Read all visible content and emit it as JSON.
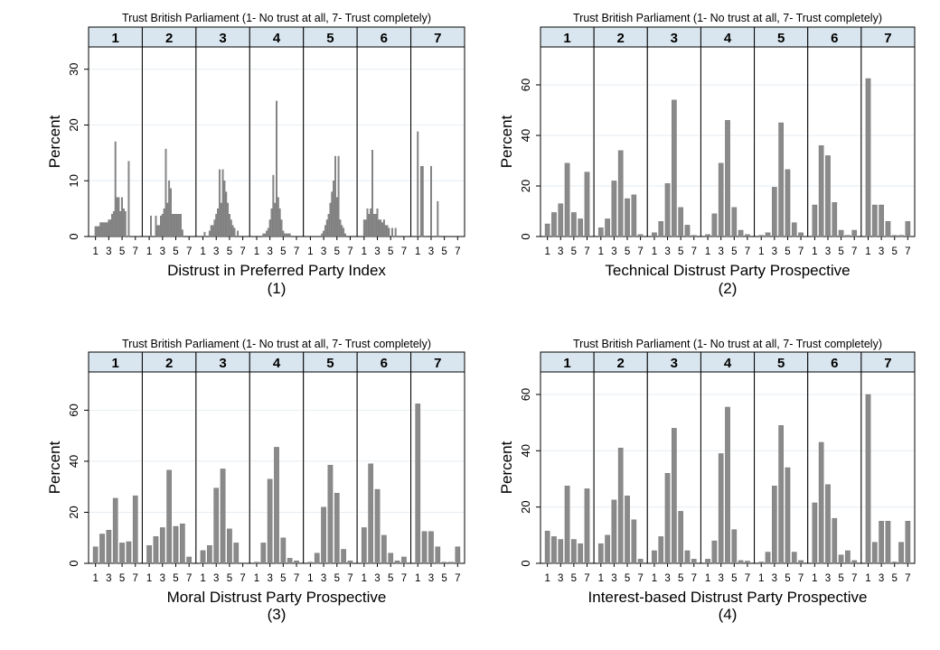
{
  "chart_data": [
    {
      "type": "bar",
      "title": "Trust British Parliament (1- No trust at all, 7- Trust completely)",
      "facets": [
        "1",
        "2",
        "3",
        "4",
        "5",
        "6",
        "7"
      ],
      "ylabel": "Percent",
      "ylim": [
        0,
        34
      ],
      "yticks": [
        0,
        10,
        20,
        30
      ],
      "xticks": [
        "1",
        "3",
        "5",
        "7"
      ],
      "xrange": [
        0.5,
        7.5
      ],
      "xlabel": "Distrust in Preferred Party Index",
      "number": "(1)",
      "grid": true,
      "panels": [
        {
          "facet": "1",
          "x": [
            1,
            1.25,
            1.5,
            1.75,
            2,
            2.25,
            2.5,
            2.75,
            3,
            3.25,
            3.5,
            3.75,
            4,
            4.25,
            4.5,
            4.75,
            5,
            5.25,
            5.5,
            5.75,
            6,
            6.25,
            6.5,
            6.75,
            7
          ],
          "values": [
            1.8,
            1.8,
            1.8,
            2.5,
            2.5,
            2.5,
            2.5,
            2.5,
            3,
            3,
            4,
            4.5,
            17,
            7,
            7,
            4.5,
            7,
            5,
            4.5,
            0,
            13.5,
            0,
            0,
            0,
            0
          ]
        },
        {
          "facet": "2",
          "x": [
            1,
            1.25,
            1.5,
            1.75,
            2,
            2.25,
            2.5,
            2.75,
            3,
            3.25,
            3.5,
            3.75,
            4,
            4.25,
            4.5,
            4.75,
            5,
            5.25,
            5.5,
            5.75,
            6,
            6.25,
            6.5,
            6.75,
            7
          ],
          "values": [
            0,
            3.7,
            0,
            0,
            3.7,
            2,
            2,
            3.7,
            4,
            5,
            15.7,
            6,
            10,
            8.6,
            4,
            4,
            4,
            4,
            4,
            4,
            1.2,
            0,
            0,
            0,
            0
          ]
        },
        {
          "facet": "3",
          "x": [
            1,
            1.25,
            1.5,
            1.75,
            2,
            2.25,
            2.5,
            2.75,
            3,
            3.25,
            3.5,
            3.75,
            4,
            4.25,
            4.5,
            4.75,
            5,
            5.25,
            5.5,
            5.75,
            6,
            6.25,
            6.5,
            6.75,
            7
          ],
          "values": [
            0,
            0.8,
            0,
            0,
            1,
            2,
            2,
            3,
            4,
            5,
            12,
            6,
            12,
            10,
            8,
            6,
            4,
            3,
            2,
            1.5,
            0,
            1,
            0,
            0,
            0
          ]
        },
        {
          "facet": "4",
          "x": [
            1,
            1.25,
            1.5,
            1.75,
            2,
            2.25,
            2.5,
            2.75,
            3,
            3.25,
            3.5,
            3.75,
            4,
            4.25,
            4.5,
            4.75,
            5,
            5.25,
            5.5,
            5.75,
            6,
            6.25,
            6.5,
            6.75,
            7
          ],
          "values": [
            0,
            0,
            0,
            0,
            0.5,
            0.5,
            1,
            1.5,
            3,
            5,
            11,
            6,
            24.3,
            7,
            5,
            3,
            1,
            0.5,
            0.5,
            0.5,
            0.5,
            0,
            0,
            0,
            0
          ]
        },
        {
          "facet": "5",
          "x": [
            1,
            1.25,
            1.5,
            1.75,
            2,
            2.25,
            2.5,
            2.75,
            3,
            3.25,
            3.5,
            3.75,
            4,
            4.25,
            4.5,
            4.75,
            5,
            5.25,
            5.5,
            5.75,
            6,
            6.25,
            6.5,
            6.75,
            7
          ],
          "values": [
            0,
            0,
            0,
            0,
            0,
            0,
            0,
            0.5,
            1,
            2,
            3,
            4,
            6,
            8,
            10,
            14.4,
            7,
            14.4,
            3,
            2,
            1.5,
            0.5,
            0,
            0,
            0
          ]
        },
        {
          "facet": "6",
          "x": [
            1,
            1.25,
            1.5,
            1.75,
            2,
            2.25,
            2.5,
            2.75,
            3,
            3.25,
            3.5,
            3.75,
            4,
            4.25,
            4.5,
            4.75,
            5,
            5.25,
            5.5,
            5.75,
            6,
            6.25,
            6.5,
            6.75,
            7
          ],
          "values": [
            3,
            3,
            5,
            4,
            5,
            15.5,
            4,
            4,
            5,
            3,
            3,
            2.5,
            3,
            2,
            2,
            1.5,
            0,
            1.5,
            0,
            1.5,
            0,
            0,
            0,
            0,
            0
          ]
        },
        {
          "facet": "7",
          "x": [
            1,
            1.25,
            1.5,
            1.75,
            2,
            2.25,
            2.5,
            2.75,
            3,
            3.25,
            3.5,
            3.75,
            4,
            4.25,
            4.5,
            4.75,
            5,
            5.25,
            5.5,
            5.75,
            6,
            6.25,
            6.5,
            6.75,
            7
          ],
          "values": [
            18.8,
            0,
            12.6,
            12.6,
            0,
            0,
            0,
            0,
            12.6,
            0,
            0,
            0,
            6.3,
            0,
            0,
            0,
            0,
            0,
            0,
            0,
            0,
            0,
            0,
            0,
            0
          ]
        }
      ]
    },
    {
      "type": "bar",
      "title": "Trust British Parliament (1- No trust at all, 7- Trust completely)",
      "facets": [
        "1",
        "2",
        "3",
        "4",
        "5",
        "6",
        "7"
      ],
      "ylabel": "Percent",
      "ylim": [
        0,
        75
      ],
      "yticks": [
        0,
        20,
        40,
        60
      ],
      "xticks": [
        "1",
        "3",
        "5",
        "7"
      ],
      "xrange": [
        0.5,
        7.5
      ],
      "xlabel": "Technical Distrust Party Prospective",
      "number": "(2)",
      "grid": true,
      "panels": [
        {
          "facet": "1",
          "x": [
            1,
            2,
            3,
            4,
            5,
            6,
            7
          ],
          "values": [
            5,
            9.5,
            13,
            29,
            9.5,
            7,
            25.5
          ]
        },
        {
          "facet": "2",
          "x": [
            1,
            2,
            3,
            4,
            5,
            6,
            7
          ],
          "values": [
            3.5,
            7,
            22,
            34,
            15,
            16.5,
            0.8
          ]
        },
        {
          "facet": "3",
          "x": [
            1,
            2,
            3,
            4,
            5,
            6,
            7
          ],
          "values": [
            1.5,
            6,
            21,
            54,
            11.5,
            4.5,
            0.5
          ]
        },
        {
          "facet": "4",
          "x": [
            1,
            2,
            3,
            4,
            5,
            6,
            7
          ],
          "values": [
            0.8,
            9,
            29,
            46,
            11.5,
            2.5,
            0.8
          ]
        },
        {
          "facet": "5",
          "x": [
            1,
            2,
            3,
            4,
            5,
            6,
            7
          ],
          "values": [
            0.5,
            1.5,
            19.5,
            45,
            26.5,
            5.5,
            1.5
          ]
        },
        {
          "facet": "6",
          "x": [
            1,
            2,
            3,
            4,
            5,
            6,
            7
          ],
          "values": [
            12.5,
            36,
            32,
            13.5,
            2.5,
            0.5,
            2.5
          ]
        },
        {
          "facet": "7",
          "x": [
            1,
            2,
            3,
            4,
            5,
            6,
            7
          ],
          "values": [
            62.5,
            12.5,
            12.5,
            6,
            0.5,
            0.5,
            6
          ]
        }
      ]
    },
    {
      "type": "bar",
      "title": "Trust British Parliament (1- No trust at all, 7- Trust completely)",
      "facets": [
        "1",
        "2",
        "3",
        "4",
        "5",
        "6",
        "7"
      ],
      "ylabel": "Percent",
      "ylim": [
        0,
        75
      ],
      "yticks": [
        0,
        20,
        40,
        60
      ],
      "xticks": [
        "1",
        "3",
        "5",
        "7"
      ],
      "xrange": [
        0.5,
        7.5
      ],
      "xlabel": "Moral Distrust Party Prospective",
      "number": "(3)",
      "grid": true,
      "panels": [
        {
          "facet": "1",
          "x": [
            1,
            2,
            3,
            4,
            5,
            6,
            7
          ],
          "values": [
            6.5,
            11.5,
            13,
            25.5,
            8,
            8.5,
            26.5
          ]
        },
        {
          "facet": "2",
          "x": [
            1,
            2,
            3,
            4,
            5,
            6,
            7
          ],
          "values": [
            7,
            10.5,
            14,
            36.5,
            14.5,
            15.5,
            2.5
          ]
        },
        {
          "facet": "3",
          "x": [
            1,
            2,
            3,
            4,
            5,
            6,
            7
          ],
          "values": [
            5,
            7,
            29.5,
            37,
            13.5,
            8,
            0.3
          ]
        },
        {
          "facet": "4",
          "x": [
            1,
            2,
            3,
            4,
            5,
            6,
            7
          ],
          "values": [
            0.5,
            8,
            33,
            45.5,
            10,
            2,
            1
          ]
        },
        {
          "facet": "5",
          "x": [
            1,
            2,
            3,
            4,
            5,
            6,
            7
          ],
          "values": [
            0.5,
            4,
            22,
            38.5,
            27.5,
            5.5,
            1
          ]
        },
        {
          "facet": "6",
          "x": [
            1,
            2,
            3,
            4,
            5,
            6,
            7
          ],
          "values": [
            14,
            39,
            29,
            11,
            4,
            1,
            2.5
          ]
        },
        {
          "facet": "7",
          "x": [
            1,
            2,
            3,
            4,
            5,
            6,
            7
          ],
          "values": [
            62.5,
            12.5,
            12.5,
            6.5,
            0.5,
            0.5,
            6.5
          ]
        }
      ]
    },
    {
      "type": "bar",
      "title": "Trust British Parliament (1- No trust at all, 7- Trust completely)",
      "facets": [
        "1",
        "2",
        "3",
        "4",
        "5",
        "6",
        "7"
      ],
      "ylabel": "Percent",
      "ylim": [
        0,
        68
      ],
      "yticks": [
        0,
        20,
        40,
        60
      ],
      "xticks": [
        "1",
        "3",
        "5",
        "7"
      ],
      "xrange": [
        0.5,
        7.5
      ],
      "xlabel": "Interest-based Distrust Party Prospective",
      "number": "(4)",
      "grid": true,
      "panels": [
        {
          "facet": "1",
          "x": [
            1,
            2,
            3,
            4,
            5,
            6,
            7
          ],
          "values": [
            11.5,
            9.5,
            8.5,
            27.5,
            8.5,
            7,
            26.5
          ]
        },
        {
          "facet": "2",
          "x": [
            1,
            2,
            3,
            4,
            5,
            6,
            7
          ],
          "values": [
            7,
            10,
            22.5,
            41,
            24,
            15.5,
            1.5
          ]
        },
        {
          "facet": "3",
          "x": [
            1,
            2,
            3,
            4,
            5,
            6,
            7
          ],
          "values": [
            4.5,
            9.5,
            32,
            48,
            18.5,
            4.5,
            1.5
          ]
        },
        {
          "facet": "4",
          "x": [
            1,
            2,
            3,
            4,
            5,
            6,
            7
          ],
          "values": [
            1.5,
            8,
            39,
            55.5,
            12,
            1,
            0.8
          ]
        },
        {
          "facet": "5",
          "x": [
            1,
            2,
            3,
            4,
            5,
            6,
            7
          ],
          "values": [
            0.5,
            4,
            27.5,
            49,
            34,
            4,
            1
          ]
        },
        {
          "facet": "6",
          "x": [
            1,
            2,
            3,
            4,
            5,
            6,
            7
          ],
          "values": [
            21.5,
            43,
            28,
            16,
            3,
            4.5,
            1
          ]
        },
        {
          "facet": "7",
          "x": [
            1,
            2,
            3,
            4,
            5,
            6,
            7
          ],
          "values": [
            60,
            7.5,
            15,
            15,
            0.5,
            7.5,
            15
          ]
        }
      ]
    }
  ],
  "colors": {
    "bar": "#8a8a8a",
    "bar_edge": "#6e6e6e",
    "strip_bg": "#d9e6ef",
    "grid": "#e6eef3",
    "axis": "#000000"
  }
}
